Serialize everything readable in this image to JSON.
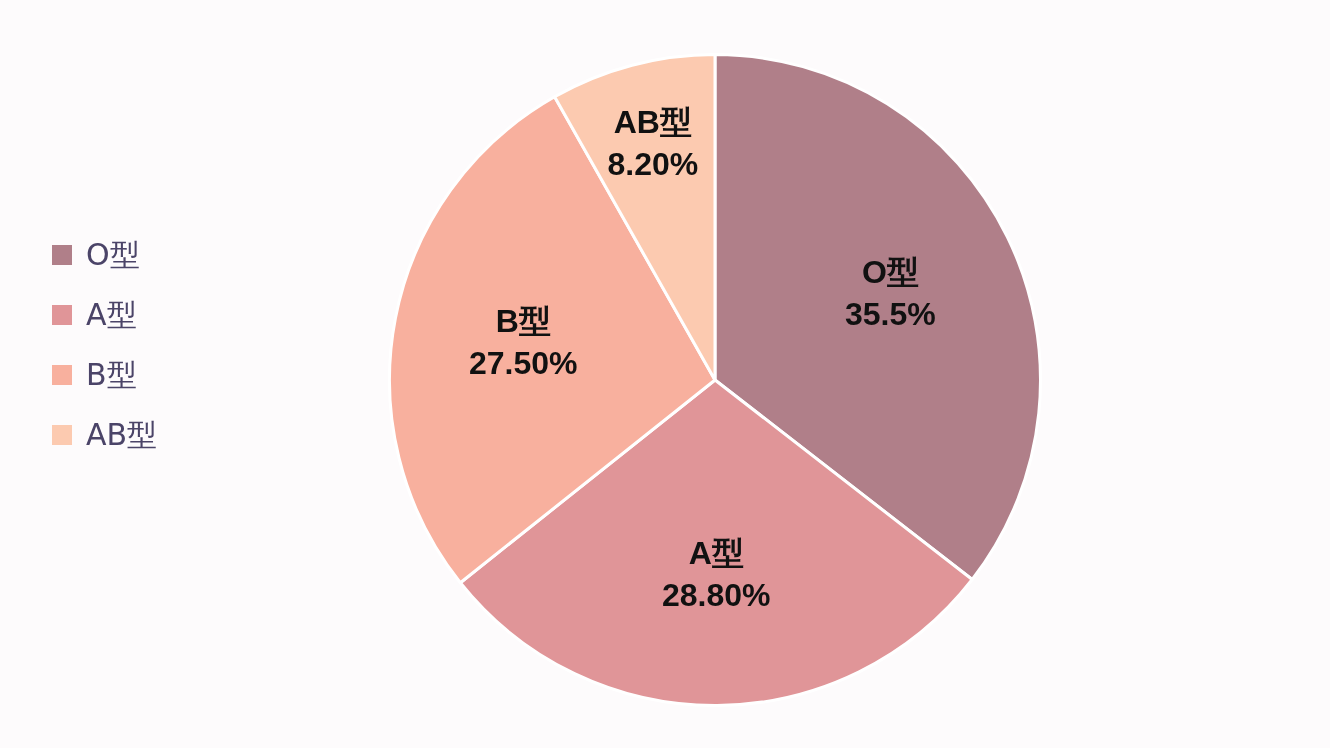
{
  "chart_data": {
    "type": "pie",
    "categories": [
      "O型",
      "A型",
      "B型",
      "AB型"
    ],
    "values": [
      35.5,
      28.8,
      27.5,
      8.2
    ],
    "value_labels": [
      "35.5%",
      "28.80%",
      "27.50%",
      "8.20%"
    ],
    "colors": [
      "#b07f89",
      "#e09598",
      "#f8b09e",
      "#fccab0"
    ],
    "legend": "left"
  }
}
